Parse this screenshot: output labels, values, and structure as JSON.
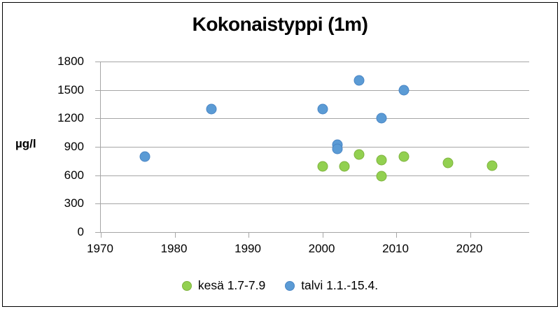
{
  "chart_data": {
    "type": "scatter",
    "title": "Kokonaistyppi (1m)",
    "ylabel": "µg/l",
    "xlabel": "",
    "xlim": [
      1970,
      2028
    ],
    "ylim": [
      0,
      1800
    ],
    "x_ticks": [
      1970,
      1980,
      1990,
      2000,
      2010,
      2020
    ],
    "y_ticks": [
      0,
      300,
      600,
      900,
      1200,
      1500,
      1800
    ],
    "grid": "horizontal",
    "legend_position": "bottom",
    "colors": {
      "gridline": "#a6a6a6",
      "axis": "#a6a6a6",
      "text": "#000000",
      "frame": "#000000"
    },
    "series": [
      {
        "name": "kesä 1.7-7.9",
        "color": "#92d050",
        "border_color": "#7fb33e",
        "points": [
          {
            "x": 2000,
            "y": 690
          },
          {
            "x": 2003,
            "y": 690
          },
          {
            "x": 2005,
            "y": 820
          },
          {
            "x": 2008,
            "y": 760
          },
          {
            "x": 2008,
            "y": 590
          },
          {
            "x": 2011,
            "y": 800
          },
          {
            "x": 2017,
            "y": 730
          },
          {
            "x": 2023,
            "y": 700
          }
        ]
      },
      {
        "name": "talvi 1.1.-15.4.",
        "color": "#5b9bd5",
        "border_color": "#4a86c5",
        "points": [
          {
            "x": 1976,
            "y": 800
          },
          {
            "x": 1985,
            "y": 1300
          },
          {
            "x": 2000,
            "y": 1300
          },
          {
            "x": 2002,
            "y": 920
          },
          {
            "x": 2002,
            "y": 880
          },
          {
            "x": 2005,
            "y": 1600
          },
          {
            "x": 2008,
            "y": 1200
          },
          {
            "x": 2011,
            "y": 1500
          }
        ]
      }
    ]
  }
}
